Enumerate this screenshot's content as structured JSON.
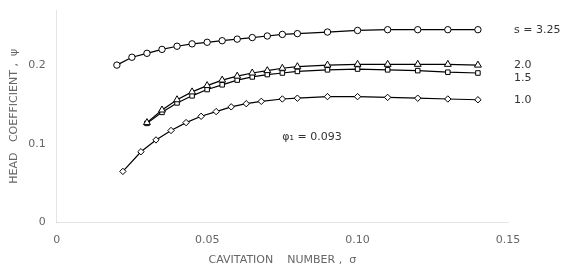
{
  "chart_data": {
    "type": "line",
    "xlabel": "CAVITATION    NUMBER ,  σ",
    "ylabel": "HEAD   COEFFICIENT ,  ψ",
    "annotation": "φ₁ = 0.093",
    "xlim": [
      0,
      0.15
    ],
    "ylim": [
      0,
      0.27
    ],
    "xticks": [
      0,
      0.05,
      {
        "value": 0.1,
        "label": "0.10"
      },
      0.15
    ],
    "yticks": [
      0,
      0.1,
      0.2
    ],
    "grid": false,
    "series": [
      {
        "name": "s = 3.25",
        "marker": "circle",
        "color": "black",
        "x": [
          0.02,
          0.025,
          0.03,
          0.035,
          0.04,
          0.045,
          0.05,
          0.055,
          0.06,
          0.065,
          0.07,
          0.075,
          0.08,
          0.09,
          0.1,
          0.11,
          0.12,
          0.13,
          0.14
        ],
        "values": [
          0.2,
          0.21,
          0.215,
          0.22,
          0.224,
          0.227,
          0.229,
          0.231,
          0.233,
          0.235,
          0.237,
          0.239,
          0.24,
          0.242,
          0.244,
          0.245,
          0.245,
          0.245,
          0.245
        ]
      },
      {
        "name": "2.0",
        "marker": "triangle",
        "color": "black",
        "x": [
          0.03,
          0.035,
          0.04,
          0.045,
          0.05,
          0.055,
          0.06,
          0.065,
          0.07,
          0.075,
          0.08,
          0.09,
          0.1,
          0.11,
          0.12,
          0.13,
          0.14
        ],
        "values": [
          0.127,
          0.143,
          0.156,
          0.166,
          0.174,
          0.181,
          0.186,
          0.19,
          0.193,
          0.196,
          0.198,
          0.2,
          0.201,
          0.201,
          0.201,
          0.201,
          0.2
        ]
      },
      {
        "name": "1.5",
        "marker": "square",
        "color": "black",
        "x": [
          0.03,
          0.035,
          0.04,
          0.045,
          0.05,
          0.055,
          0.06,
          0.065,
          0.07,
          0.075,
          0.08,
          0.09,
          0.1,
          0.11,
          0.12,
          0.13,
          0.14
        ],
        "values": [
          0.126,
          0.14,
          0.152,
          0.161,
          0.169,
          0.175,
          0.181,
          0.185,
          0.188,
          0.19,
          0.192,
          0.194,
          0.195,
          0.194,
          0.193,
          0.191,
          0.19
        ]
      },
      {
        "name": "1.0",
        "marker": "diamond",
        "color": "black",
        "x": [
          0.022,
          0.028,
          0.033,
          0.038,
          0.043,
          0.048,
          0.053,
          0.058,
          0.063,
          0.068,
          0.075,
          0.08,
          0.09,
          0.1,
          0.11,
          0.12,
          0.13,
          0.14
        ],
        "values": [
          0.065,
          0.09,
          0.105,
          0.117,
          0.127,
          0.135,
          0.141,
          0.147,
          0.151,
          0.154,
          0.157,
          0.158,
          0.16,
          0.16,
          0.159,
          0.158,
          0.157,
          0.156
        ]
      }
    ]
  }
}
